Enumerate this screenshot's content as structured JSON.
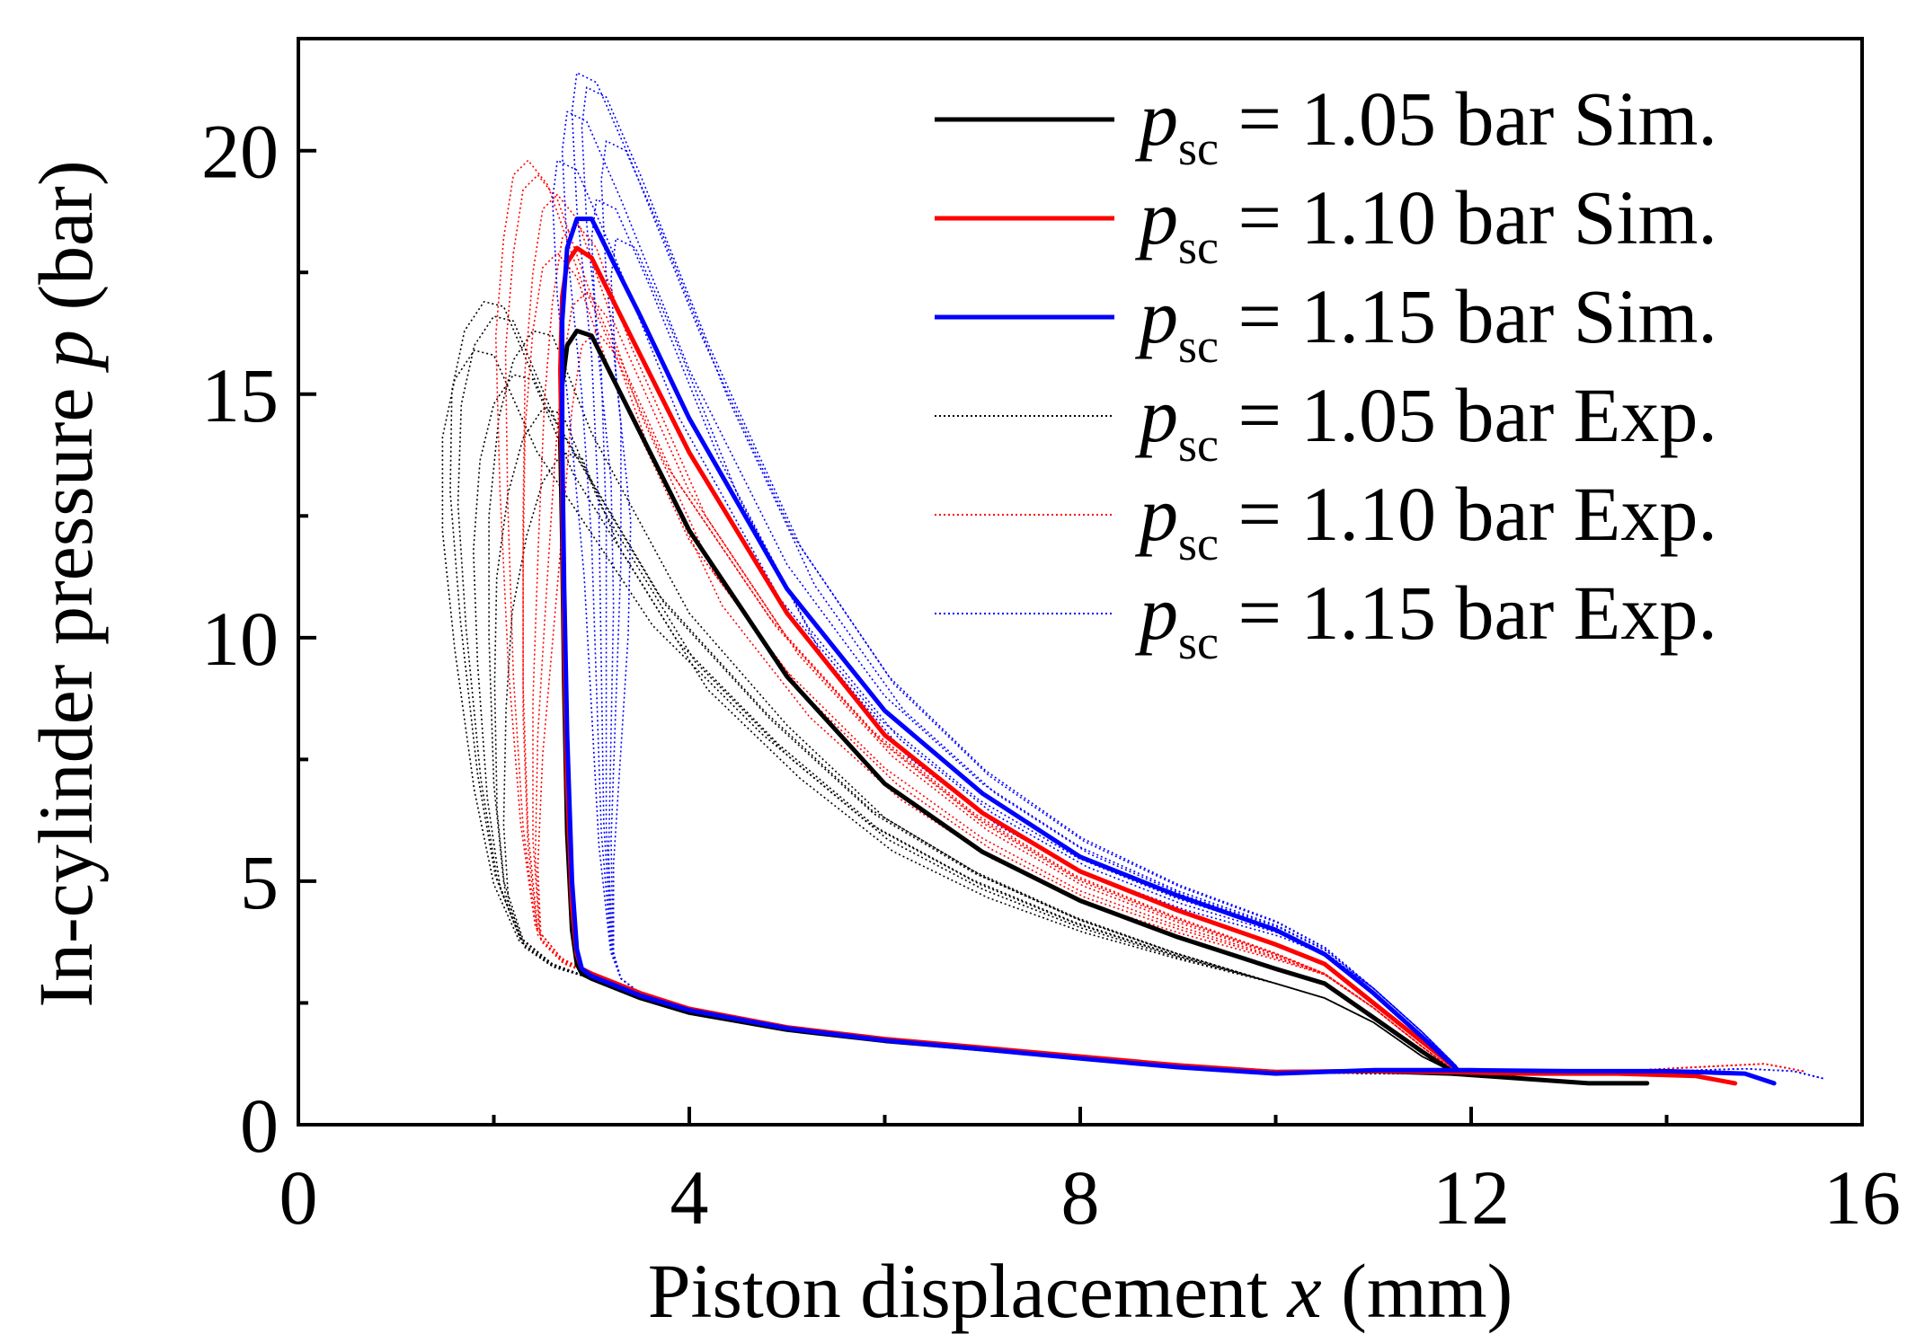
{
  "chart_data": {
    "type": "line",
    "xlabel": {
      "prefix": "Piston displacement ",
      "var": "x",
      "suffix": " (mm)"
    },
    "ylabel": {
      "prefix": "In-cylinder pressure ",
      "var": "p",
      "suffix": " (bar)"
    },
    "xlim": [
      0,
      16
    ],
    "ylim": [
      0,
      22.3
    ],
    "x_ticks": [
      0,
      4,
      8,
      12,
      16
    ],
    "x_minor_ticks": [
      2,
      6,
      10,
      14
    ],
    "y_ticks": [
      0,
      5,
      10,
      15,
      20
    ],
    "y_minor_ticks": [
      2.5,
      7.5,
      12.5,
      17.5
    ],
    "grid": false,
    "legend_position": "top-right",
    "series": [
      {
        "name": "psc = 1.05 bar Sim.",
        "legend": {
          "var": "p",
          "sub": "sc",
          "text": " = 1.05 bar Sim."
        },
        "color": "#000000",
        "style": "solid",
        "points": [
          [
            13.8,
            0.85
          ],
          [
            13.2,
            0.85
          ],
          [
            12.5,
            0.95
          ],
          [
            11.8,
            1.05
          ],
          [
            11,
            1.1
          ],
          [
            10,
            1.08
          ],
          [
            9,
            1.2
          ],
          [
            8,
            1.38
          ],
          [
            7,
            1.55
          ],
          [
            6,
            1.72
          ],
          [
            5,
            1.95
          ],
          [
            4,
            2.3
          ],
          [
            3.5,
            2.6
          ],
          [
            3,
            3
          ],
          [
            2.9,
            3.1
          ],
          [
            2.85,
            3.3
          ],
          [
            2.8,
            4
          ],
          [
            2.75,
            6
          ],
          [
            2.72,
            9
          ],
          [
            2.7,
            12
          ],
          [
            2.68,
            14
          ],
          [
            2.7,
            15.2
          ],
          [
            2.75,
            16
          ],
          [
            2.85,
            16.3
          ],
          [
            3,
            16.2
          ],
          [
            3.5,
            14.2
          ],
          [
            4,
            12.2
          ],
          [
            5,
            9.2
          ],
          [
            6,
            7
          ],
          [
            7,
            5.6
          ],
          [
            8,
            4.6
          ],
          [
            9,
            3.85
          ],
          [
            10,
            3.2
          ],
          [
            10.5,
            2.9
          ],
          [
            11,
            2.2
          ],
          [
            11.5,
            1.5
          ],
          [
            11.8,
            1.1
          ]
        ]
      },
      {
        "name": "psc = 1.10 bar Sim.",
        "legend": {
          "var": "p",
          "sub": "sc",
          "text": " = 1.10 bar Sim."
        },
        "color": "#ff0000",
        "style": "solid",
        "points": [
          [
            14.7,
            0.85
          ],
          [
            14.3,
            1.0
          ],
          [
            13.5,
            1.05
          ],
          [
            12.5,
            1.05
          ],
          [
            11.8,
            1.08
          ],
          [
            11,
            1.1
          ],
          [
            10,
            1.08
          ],
          [
            9,
            1.22
          ],
          [
            8,
            1.4
          ],
          [
            7,
            1.58
          ],
          [
            6,
            1.76
          ],
          [
            5,
            2.0
          ],
          [
            4,
            2.38
          ],
          [
            3.5,
            2.7
          ],
          [
            3,
            3.1
          ],
          [
            2.9,
            3.2
          ],
          [
            2.85,
            3.5
          ],
          [
            2.8,
            4.5
          ],
          [
            2.75,
            7
          ],
          [
            2.72,
            10
          ],
          [
            2.7,
            13
          ],
          [
            2.68,
            15.5
          ],
          [
            2.7,
            17
          ],
          [
            2.75,
            17.7
          ],
          [
            2.85,
            18
          ],
          [
            3,
            17.8
          ],
          [
            3.5,
            15.8
          ],
          [
            4,
            13.8
          ],
          [
            5,
            10.5
          ],
          [
            6,
            8
          ],
          [
            7,
            6.4
          ],
          [
            8,
            5.2
          ],
          [
            9,
            4.4
          ],
          [
            10,
            3.7
          ],
          [
            10.5,
            3.3
          ],
          [
            11,
            2.5
          ],
          [
            11.5,
            1.7
          ],
          [
            11.85,
            1.15
          ]
        ]
      },
      {
        "name": "psc = 1.15 bar Sim.",
        "legend": {
          "var": "p",
          "sub": "sc",
          "text": " = 1.15 bar Sim."
        },
        "color": "#0000ff",
        "style": "solid",
        "points": [
          [
            15.1,
            0.85
          ],
          [
            14.8,
            1.05
          ],
          [
            14,
            1.1
          ],
          [
            13,
            1.1
          ],
          [
            12,
            1.12
          ],
          [
            11,
            1.12
          ],
          [
            10,
            1.05
          ],
          [
            9,
            1.18
          ],
          [
            8,
            1.36
          ],
          [
            7,
            1.55
          ],
          [
            6,
            1.73
          ],
          [
            5,
            1.98
          ],
          [
            4,
            2.35
          ],
          [
            3.5,
            2.65
          ],
          [
            3,
            3.05
          ],
          [
            2.9,
            3.2
          ],
          [
            2.85,
            3.6
          ],
          [
            2.8,
            5
          ],
          [
            2.75,
            8
          ],
          [
            2.72,
            11
          ],
          [
            2.7,
            14
          ],
          [
            2.7,
            16.5
          ],
          [
            2.75,
            18
          ],
          [
            2.85,
            18.6
          ],
          [
            3,
            18.6
          ],
          [
            3.5,
            16.6
          ],
          [
            4,
            14.5
          ],
          [
            5,
            11
          ],
          [
            6,
            8.5
          ],
          [
            7,
            6.8
          ],
          [
            8,
            5.5
          ],
          [
            9,
            4.7
          ],
          [
            10,
            4
          ],
          [
            10.5,
            3.5
          ],
          [
            11,
            2.7
          ],
          [
            11.5,
            1.8
          ],
          [
            11.85,
            1.15
          ]
        ]
      },
      {
        "name": "psc = 1.05 bar Exp.",
        "legend": {
          "var": "p",
          "sub": "sc",
          "text": " = 1.05 bar Exp."
        },
        "color": "#000000",
        "style": "dotted",
        "peak_shifts": [
          [
            0,
            0
          ],
          [
            -0.4,
            0.3
          ],
          [
            -0.6,
            -0.4
          ],
          [
            -0.2,
            -0.9
          ],
          [
            0.1,
            -1.6
          ],
          [
            -0.5,
            0.6
          ],
          [
            0.3,
            -2.5
          ]
        ],
        "points": [
          [
            12.5,
            1.05
          ],
          [
            11,
            1.05
          ],
          [
            10,
            1.08
          ],
          [
            9,
            1.2
          ],
          [
            8,
            1.38
          ],
          [
            7,
            1.55
          ],
          [
            6,
            1.72
          ],
          [
            5,
            1.95
          ],
          [
            4,
            2.3
          ],
          [
            3.5,
            2.6
          ],
          [
            3,
            3
          ],
          [
            2.6,
            3.3
          ],
          [
            2.3,
            3.8
          ],
          [
            2.1,
            5
          ],
          [
            2,
            7
          ],
          [
            1.95,
            10
          ],
          [
            1.95,
            12.5
          ],
          [
            2.05,
            14.5
          ],
          [
            2.2,
            15.7
          ],
          [
            2.4,
            16.3
          ],
          [
            2.6,
            16.2
          ],
          [
            3,
            14.2
          ],
          [
            4,
            10.5
          ],
          [
            5,
            8.2
          ],
          [
            6,
            6.3
          ],
          [
            7,
            5.1
          ],
          [
            8,
            4.2
          ],
          [
            9,
            3.5
          ],
          [
            10,
            2.9
          ],
          [
            10.5,
            2.6
          ],
          [
            11,
            2.1
          ],
          [
            11.5,
            1.4
          ],
          [
            11.8,
            1.1
          ]
        ]
      },
      {
        "name": "psc = 1.10 bar Exp.",
        "legend": {
          "var": "p",
          "sub": "sc",
          "text": " = 1.10 bar Exp."
        },
        "color": "#ff0000",
        "style": "dotted",
        "peak_shifts": [
          [
            0,
            0
          ],
          [
            -0.2,
            0.4
          ],
          [
            0.2,
            -0.6
          ],
          [
            0,
            -1.2
          ],
          [
            0.3,
            -2
          ],
          [
            -0.3,
            0.7
          ],
          [
            0.4,
            -2.8
          ]
        ],
        "points": [
          [
            15.4,
            1.1
          ],
          [
            15,
            1.25
          ],
          [
            14.5,
            1.2
          ],
          [
            13.5,
            1.1
          ],
          [
            12.5,
            1.05
          ],
          [
            11,
            1.08
          ],
          [
            10,
            1.08
          ],
          [
            9,
            1.22
          ],
          [
            8,
            1.4
          ],
          [
            7,
            1.58
          ],
          [
            6,
            1.76
          ],
          [
            5,
            2.0
          ],
          [
            4,
            2.38
          ],
          [
            3.5,
            2.7
          ],
          [
            3,
            3.1
          ],
          [
            2.7,
            3.4
          ],
          [
            2.45,
            4
          ],
          [
            2.35,
            6
          ],
          [
            2.3,
            9
          ],
          [
            2.3,
            12.5
          ],
          [
            2.32,
            15.5
          ],
          [
            2.4,
            17.5
          ],
          [
            2.5,
            18.8
          ],
          [
            2.65,
            19.1
          ],
          [
            2.85,
            18.6
          ],
          [
            3.2,
            16.6
          ],
          [
            4,
            13
          ],
          [
            5,
            10
          ],
          [
            6,
            7.8
          ],
          [
            7,
            6.2
          ],
          [
            8,
            5
          ],
          [
            9,
            4.2
          ],
          [
            10,
            3.5
          ],
          [
            10.5,
            3.1
          ],
          [
            11,
            2.4
          ],
          [
            11.5,
            1.6
          ],
          [
            11.8,
            1.15
          ]
        ]
      },
      {
        "name": "psc = 1.15 bar Exp.",
        "legend": {
          "var": "p",
          "sub": "sc",
          "text": " = 1.15 bar Exp."
        },
        "color": "#0000ff",
        "style": "dotted",
        "peak_shifts": [
          [
            0,
            0
          ],
          [
            0.2,
            0.5
          ],
          [
            0.4,
            -0.6
          ],
          [
            -0.1,
            -1
          ],
          [
            0.3,
            -1.8
          ],
          [
            0.1,
            0.8
          ],
          [
            0.5,
            -2.6
          ]
        ],
        "points": [
          [
            15.6,
            0.95
          ],
          [
            15.3,
            1.1
          ],
          [
            14.8,
            1.15
          ],
          [
            14,
            1.1
          ],
          [
            13,
            1.1
          ],
          [
            12,
            1.1
          ],
          [
            11,
            1.1
          ],
          [
            10,
            1.05
          ],
          [
            9,
            1.18
          ],
          [
            8,
            1.36
          ],
          [
            7,
            1.55
          ],
          [
            6,
            1.73
          ],
          [
            5,
            1.98
          ],
          [
            4,
            2.35
          ],
          [
            3.5,
            2.7
          ],
          [
            3.3,
            3
          ],
          [
            3.2,
            3.6
          ],
          [
            3.1,
            6
          ],
          [
            3.05,
            9
          ],
          [
            3,
            12
          ],
          [
            2.9,
            15
          ],
          [
            2.75,
            18
          ],
          [
            2.7,
            20
          ],
          [
            2.75,
            20.8
          ],
          [
            2.95,
            20.6
          ],
          [
            3.3,
            19
          ],
          [
            4,
            15.5
          ],
          [
            5,
            11.5
          ],
          [
            6,
            8.8
          ],
          [
            7,
            7
          ],
          [
            8,
            5.7
          ],
          [
            9,
            4.8
          ],
          [
            10,
            4.1
          ],
          [
            10.5,
            3.6
          ],
          [
            11,
            2.8
          ],
          [
            11.5,
            1.9
          ],
          [
            11.85,
            1.2
          ]
        ]
      }
    ]
  }
}
